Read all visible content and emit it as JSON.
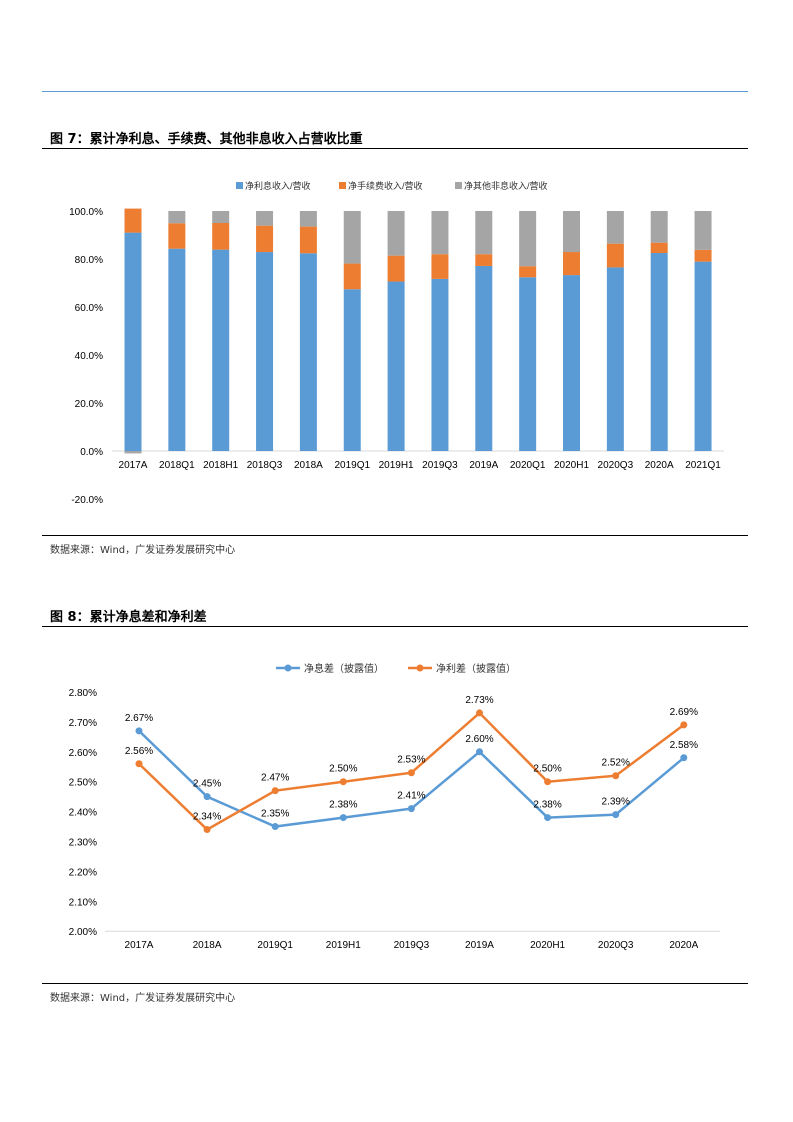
{
  "figure7": {
    "title": "图 7：累计净利息、手续费、其他非息收入占营收比重",
    "source": "数据来源：Wind，广发证券发展研究中心",
    "chart_data": {
      "type": "bar",
      "stacked": true,
      "categories": [
        "2017A",
        "2018Q1",
        "2018H1",
        "2018Q3",
        "2018A",
        "2019Q1",
        "2019H1",
        "2019Q3",
        "2019A",
        "2020Q1",
        "2020H1",
        "2020Q3",
        "2020A",
        "2021Q1"
      ],
      "series": [
        {
          "name": "净利息收入/营收",
          "color": "#5B9BD5",
          "values": [
            91.0,
            84.3,
            83.9,
            82.9,
            82.4,
            67.4,
            70.6,
            71.7,
            77.1,
            72.4,
            73.3,
            76.5,
            82.5,
            78.9
          ]
        },
        {
          "name": "净手续费收入/营收",
          "color": "#ED7D31",
          "values": [
            10.0,
            10.6,
            11.1,
            11.0,
            11.1,
            10.7,
            10.8,
            10.3,
            4.9,
            4.6,
            9.6,
            9.9,
            4.3,
            4.9
          ]
        },
        {
          "name": "净其他非息收入/营收",
          "color": "#A5A5A5",
          "values": [
            -1.0,
            5.1,
            5.0,
            6.1,
            6.5,
            21.9,
            18.6,
            18.0,
            18.0,
            23.0,
            17.1,
            13.6,
            13.2,
            16.2
          ]
        }
      ],
      "ylim": [
        -20,
        100
      ],
      "yticks": [
        "100.0%",
        "80.0%",
        "60.0%",
        "40.0%",
        "20.0%",
        "0.0%",
        "-20.0%"
      ],
      "legend": "top",
      "grid": false
    }
  },
  "figure8": {
    "title": "图 8：累计净息差和净利差",
    "source": "数据来源：Wind，广发证券发展研究中心",
    "chart_data": {
      "type": "line",
      "categories": [
        "2017A",
        "2018A",
        "2019Q1",
        "2019H1",
        "2019Q3",
        "2019A",
        "2020H1",
        "2020Q3",
        "2020A"
      ],
      "series": [
        {
          "name": "净息差（披露值）",
          "color": "#5B9BD5",
          "values": [
            2.67,
            2.45,
            2.35,
            2.38,
            2.41,
            2.6,
            2.38,
            2.39,
            2.58
          ]
        },
        {
          "name": "净利差（披露值）",
          "color": "#ED7D31",
          "values": [
            2.56,
            2.34,
            2.47,
            2.5,
            2.53,
            2.73,
            2.5,
            2.52,
            2.69
          ]
        }
      ],
      "ylim": [
        2.0,
        2.8
      ],
      "yticks": [
        "2.80%",
        "2.70%",
        "2.60%",
        "2.50%",
        "2.40%",
        "2.30%",
        "2.20%",
        "2.10%",
        "2.00%"
      ],
      "legend": "top",
      "grid": false
    }
  }
}
